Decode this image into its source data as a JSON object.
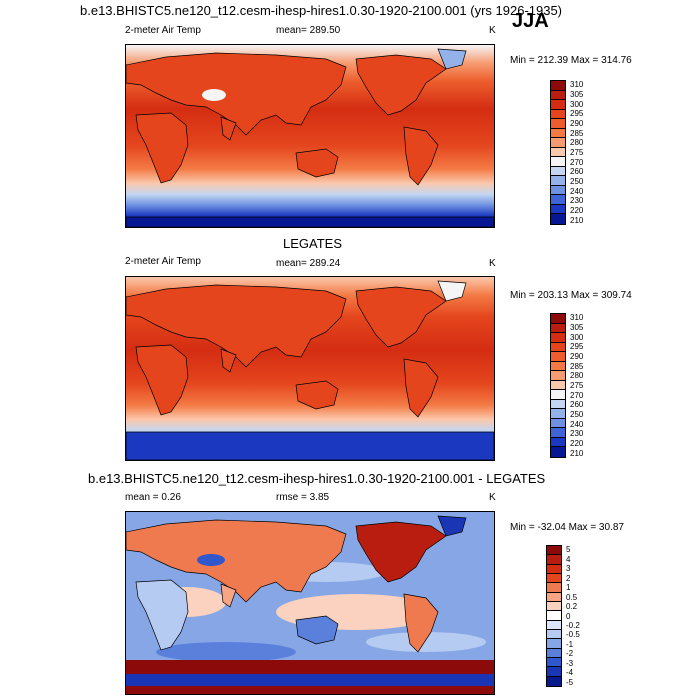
{
  "season": "JJA",
  "panels": [
    {
      "title": "b.e13.BHISTC5.ne120_t12.cesm-ihesp-hires1.0.30-1920-2100.001 (yrs 1926-1935)",
      "var_label": "2-meter Air Temp",
      "mean_text": "mean= 289.50",
      "unit": "K",
      "minmax": "Min = 212.39 Max = 314.76",
      "levels": [
        "310",
        "305",
        "300",
        "295",
        "290",
        "285",
        "280",
        "275",
        "270",
        "260",
        "250",
        "240",
        "230",
        "220",
        "210"
      ],
      "colors": [
        "#8c0a0a",
        "#b81d0f",
        "#d42d12",
        "#e4451d",
        "#ed5e2c",
        "#f47a45",
        "#f79b70",
        "#fac8ac",
        "#f5f5f5",
        "#c4d6f2",
        "#94b2ea",
        "#6f91e2",
        "#3e64d6",
        "#1a38c0",
        "#061794"
      ]
    },
    {
      "title": "LEGATES",
      "var_label": "2-meter Air Temp",
      "mean_text": "mean= 289.24",
      "unit": "K",
      "minmax": "Min = 203.13 Max = 309.74",
      "levels": [
        "310",
        "305",
        "300",
        "295",
        "290",
        "285",
        "280",
        "275",
        "270",
        "260",
        "250",
        "240",
        "230",
        "220",
        "210"
      ],
      "colors": [
        "#8c0a0a",
        "#b81d0f",
        "#d42d12",
        "#e4451d",
        "#ed5e2c",
        "#f47a45",
        "#f79b70",
        "#fac8ac",
        "#f5f5f5",
        "#c4d6f2",
        "#94b2ea",
        "#6f91e2",
        "#3e64d6",
        "#1a38c0",
        "#061794"
      ]
    },
    {
      "title": "b.e13.BHISTC5.ne120_t12.cesm-ihesp-hires1.0.30-1920-2100.001 - LEGATES",
      "mean_text": "mean =   0.26",
      "rmse_text": "rmse =   3.85",
      "unit": "K",
      "minmax": "Min = -32.04 Max =  30.87",
      "levels": [
        "5",
        "4",
        "3",
        "2",
        "1",
        "0.5",
        "0.2",
        "0",
        "-0.2",
        "-0.5",
        "-1",
        "-2",
        "-3",
        "-4",
        "-5"
      ],
      "colors": [
        "#8c0a0a",
        "#b81d0f",
        "#d42d12",
        "#e4451d",
        "#f07a50",
        "#f7a585",
        "#fad2bf",
        "#ffffff",
        "#dbe7f8",
        "#b5cbf1",
        "#86a6e6",
        "#5a80dc",
        "#3057cc",
        "#1a36b4",
        "#061a8c"
      ]
    }
  ]
}
